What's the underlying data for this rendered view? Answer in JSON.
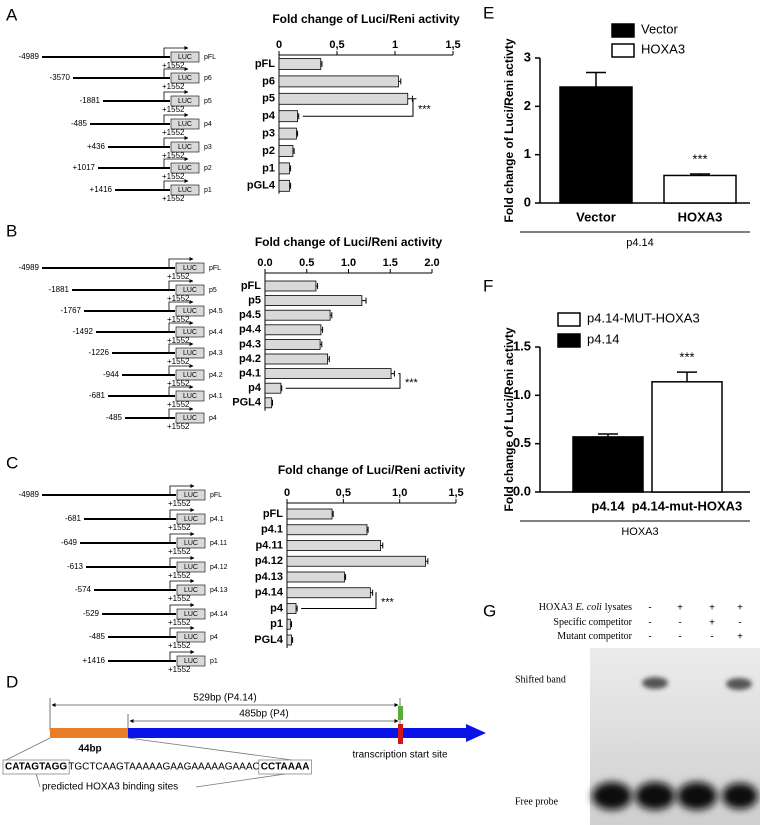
{
  "panel_labels": [
    "A",
    "B",
    "C",
    "D",
    "E",
    "F",
    "G"
  ],
  "chart_data": [
    {
      "type": "bar",
      "orientation": "horizontal",
      "title": "Fold change of Luci/Reni activity",
      "categories": [
        "pFL",
        "p6",
        "p5",
        "p4",
        "p3",
        "p2",
        "p1",
        "pGL4"
      ],
      "values": [
        0.36,
        1.03,
        1.11,
        0.16,
        0.15,
        0.12,
        0.09,
        0.09
      ],
      "errors": [
        0.01,
        0.02,
        0.04,
        0.01,
        0.01,
        0.01,
        0.01,
        0.01
      ],
      "color": "#d9d9d9",
      "xlim": [
        0,
        1.5
      ],
      "xticks": [
        0,
        {
          "value": 0.5,
          "label": "0,5"
        },
        1,
        {
          "value": 1.5,
          "label": "1,5"
        }
      ],
      "annotation": "***"
    },
    {
      "type": "bar",
      "orientation": "horizontal",
      "title": "Fold change of Luci/Reni activity",
      "categories": [
        "pFL",
        "p5",
        "p4.5",
        "p4.4",
        "p4.3",
        "p4.2",
        "p4.1",
        "p4",
        "PGL4"
      ],
      "values": [
        0.61,
        1.16,
        0.78,
        0.67,
        0.66,
        0.75,
        1.51,
        0.19,
        0.08
      ],
      "errors": [
        0.02,
        0.05,
        0.02,
        0.02,
        0.02,
        0.02,
        0.04,
        0.01,
        0.01
      ],
      "color": "#d9d9d9",
      "xlim": [
        0,
        2
      ],
      "xticks": [
        {
          "value": 0,
          "label": "0.0"
        },
        0.5,
        {
          "value": 1,
          "label": "1.0"
        },
        1.5,
        {
          "value": 2,
          "label": "2.0"
        }
      ],
      "annotation": "***"
    },
    {
      "type": "bar",
      "orientation": "horizontal",
      "title": "Fold change of Luci/Reni activity",
      "categories": [
        "pFL",
        "p4.1",
        "p4.11",
        "p4.12",
        "p4.13",
        "p4.14",
        "p4",
        "p1",
        "PGL4"
      ],
      "values": [
        0.4,
        0.71,
        0.83,
        1.23,
        0.51,
        0.74,
        0.08,
        0.03,
        0.04
      ],
      "errors": [
        0.01,
        0.01,
        0.02,
        0.02,
        0.01,
        0.02,
        0.01,
        0.01,
        0.01
      ],
      "color": "#d9d9d9",
      "xlim": [
        0,
        1.5
      ],
      "xticks": [
        0,
        {
          "value": 0.5,
          "label": "0,5"
        },
        {
          "value": 1,
          "label": "1,0"
        },
        {
          "value": 1.5,
          "label": "1,5"
        }
      ],
      "annotation": "***"
    },
    {
      "type": "bar",
      "orientation": "vertical",
      "ylabel": "Fold change of Luci/Reni activty",
      "categories": [
        "Vector",
        "HOXA3"
      ],
      "values": [
        2.4,
        0.57
      ],
      "errors": [
        0.3,
        0.03
      ],
      "colors": [
        "#000000",
        "#ffffff"
      ],
      "legend": [
        {
          "name": "Vector",
          "color": "#000000"
        },
        {
          "name": "HOXA3",
          "color": "#ffffff"
        }
      ],
      "ylim": [
        0,
        3
      ],
      "yticks": [
        0,
        1,
        2,
        3
      ],
      "group_label": "p4.14",
      "annotation": "***"
    },
    {
      "type": "bar",
      "orientation": "vertical",
      "ylabel": "Fold change of Luci/Reni activty",
      "categories": [
        "p4.14",
        "p4.14-mut-HOXA3"
      ],
      "values": [
        0.57,
        1.14
      ],
      "errors": [
        0.03,
        0.1
      ],
      "colors": [
        "#000000",
        "#ffffff"
      ],
      "legend": [
        {
          "name": "p4.14-MUT-HOXA3",
          "color": "#ffffff"
        },
        {
          "name": "p4.14",
          "color": "#000000"
        }
      ],
      "ylim": [
        0,
        1.5
      ],
      "yticks": [
        {
          "value": 0,
          "label": "0.0"
        },
        0.5,
        {
          "value": 1,
          "label": "1.0"
        },
        1.5
      ],
      "group_label": "HOXA3",
      "annotation": "***"
    }
  ],
  "construct_maps": [
    {
      "rows": [
        {
          "start": "-4989",
          "end": "+1552",
          "box": "LUC",
          "name": "pFL"
        },
        {
          "start": "-3570",
          "end": "+1552",
          "box": "LUC",
          "name": "p6"
        },
        {
          "start": "-1881",
          "end": "+1552",
          "box": "LUC",
          "name": "p5"
        },
        {
          "start": "-485",
          "end": "+1552",
          "box": "LUC",
          "name": "p4"
        },
        {
          "start": "+436",
          "end": "+1552",
          "box": "LUC",
          "name": "p3"
        },
        {
          "start": "+1017",
          "end": "+1552",
          "box": "LUC",
          "name": "p2"
        },
        {
          "start": "+1416",
          "end": "+1552",
          "box": "LUC",
          "name": "p1"
        }
      ]
    },
    {
      "rows": [
        {
          "start": "-4989",
          "end": "+1552",
          "box": "LUC",
          "name": "pFL"
        },
        {
          "start": "-1881",
          "end": "+1552",
          "box": "LUC",
          "name": "p5"
        },
        {
          "start": "-1767",
          "end": "+1552",
          "box": "LUC",
          "name": "p4.5"
        },
        {
          "start": "-1492",
          "end": "+1552",
          "box": "LUC",
          "name": "p4.4"
        },
        {
          "start": "-1226",
          "end": "+1552",
          "box": "LUC",
          "name": "p4.3"
        },
        {
          "start": "-944",
          "end": "+1552",
          "box": "LUC",
          "name": "p4.2"
        },
        {
          "start": "-681",
          "end": "+1552",
          "box": "LUC",
          "name": "p4.1"
        },
        {
          "start": "-485",
          "end": "+1552",
          "box": "LUC",
          "name": "p4"
        }
      ]
    },
    {
      "rows": [
        {
          "start": "-4989",
          "end": "+1552",
          "box": "LUC",
          "name": "pFL"
        },
        {
          "start": "-681",
          "end": "+1552",
          "box": "LUC",
          "name": "p4.1"
        },
        {
          "start": "-649",
          "end": "+1552",
          "box": "LUC",
          "name": "p4.11"
        },
        {
          "start": "-613",
          "end": "+1552",
          "box": "LUC",
          "name": "p4.12"
        },
        {
          "start": "-574",
          "end": "+1552",
          "box": "LUC",
          "name": "p4.13"
        },
        {
          "start": "-529",
          "end": "+1552",
          "box": "LUC",
          "name": "p4.14"
        },
        {
          "start": "-485",
          "end": "+1552",
          "box": "LUC",
          "name": "p4"
        },
        {
          "start": "+1416",
          "end": "+1552",
          "box": "LUC",
          "name": "p1"
        }
      ]
    }
  ],
  "promoter_diagram": {
    "span_long": "529bp (P4.14)",
    "span_short": "485bp (P4)",
    "segment": "44bp",
    "sequence": [
      "CATAGTAGG",
      "TGCTCAAGTAAAAAGAAGAAAAAGAAAC",
      "CCTAAAA"
    ],
    "sites_label": "predicted HOXA3 binding sites",
    "tss_label": "transcription start site"
  },
  "emsa": {
    "rows": [
      {
        "label": [
          "HOXA3",
          "E. coli",
          "lysates"
        ],
        "signs": [
          "-",
          "+",
          "+",
          "+"
        ]
      },
      {
        "label": [
          "Specific competitor"
        ],
        "signs": [
          "-",
          "-",
          "+",
          "-"
        ]
      },
      {
        "label": [
          "Mutant competitor"
        ],
        "signs": [
          "-",
          "-",
          "-",
          "+"
        ]
      }
    ],
    "shifted_label": "Shifted band",
    "free_label": "Free probe"
  }
}
